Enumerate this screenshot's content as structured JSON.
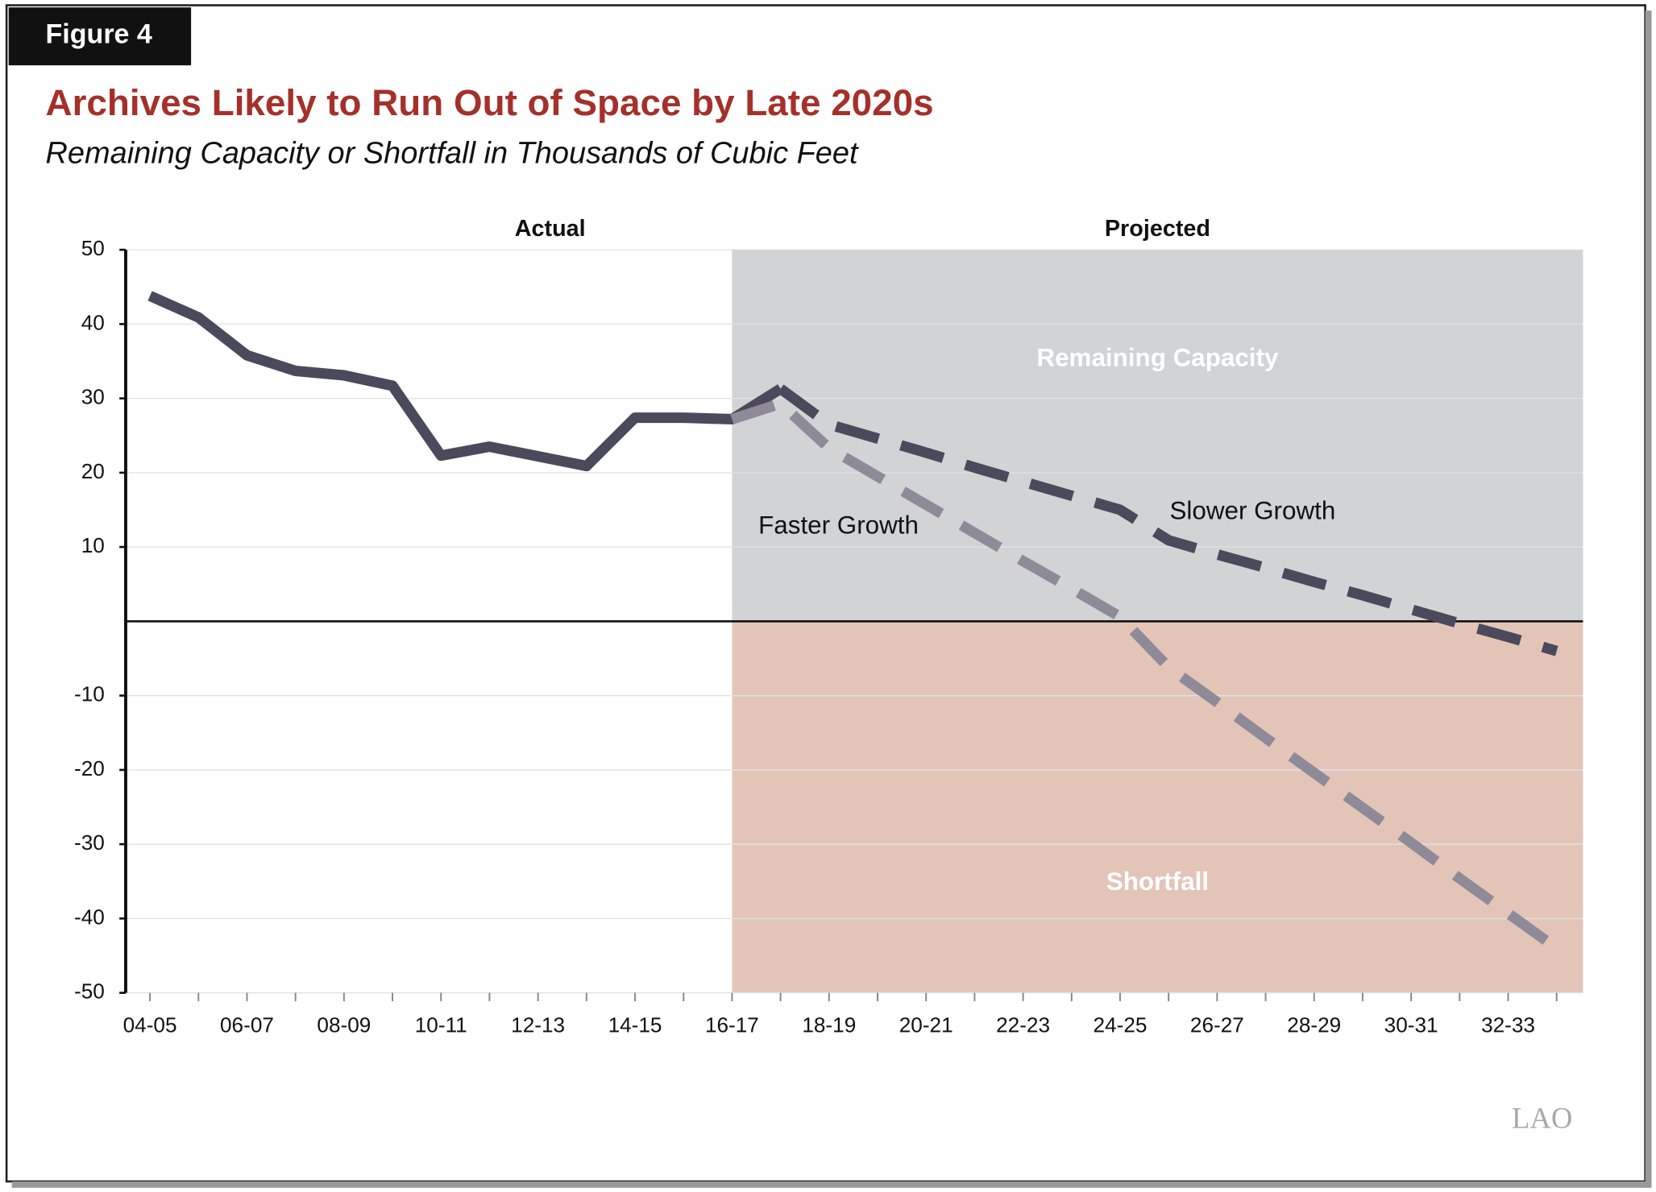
{
  "chart_data": {
    "type": "line",
    "figure_label": "Figure 4",
    "title": "Archives Likely to Run Out of Space by Late 2020s",
    "subtitle": "Remaining Capacity or Shortfall in Thousands of Cubic Feet",
    "region_labels": [
      "Actual",
      "Projected"
    ],
    "area_labels": [
      "Remaining Capacity",
      "Shortfall"
    ],
    "projected_from": "16-17",
    "categories": [
      "04-05",
      null,
      "06-07",
      null,
      "08-09",
      null,
      "10-11",
      null,
      "12-13",
      null,
      "14-15",
      null,
      "16-17",
      null,
      "18-19",
      null,
      "20-21",
      null,
      "22-23",
      null,
      "24-25",
      null,
      "26-27",
      null,
      "28-29",
      null,
      "30-31",
      null,
      "32-33",
      null
    ],
    "series": [
      {
        "name": "Actual",
        "color": "#4a4a5c",
        "dashed": false,
        "values": [
          43.8,
          40.9,
          35.8,
          33.7,
          33.1,
          31.7,
          22.3,
          23.5,
          22.2,
          20.9,
          27.4,
          27.4,
          27.2,
          31.3,
          null,
          null,
          null,
          null,
          null,
          null,
          null,
          null,
          null,
          null,
          null,
          null,
          null,
          null,
          null,
          null
        ]
      },
      {
        "name": "Faster Growth",
        "color": "#8e8a98",
        "dashed": true,
        "values": [
          null,
          null,
          null,
          null,
          null,
          null,
          null,
          null,
          null,
          null,
          null,
          null,
          27.2,
          29.3,
          23.3,
          19.5,
          15.7,
          11.9,
          8.1,
          4.4,
          0.6,
          -6.2,
          -10.9,
          -15.7,
          -20.4,
          -25.1,
          -29.8,
          -34.6,
          -39.3,
          -44
        ]
      },
      {
        "name": "Slower Growth",
        "color": "#4a4a5c",
        "dashed": true,
        "values": [
          null,
          null,
          null,
          null,
          null,
          null,
          null,
          null,
          null,
          null,
          null,
          null,
          null,
          31.3,
          26.5,
          24.6,
          22.7,
          20.7,
          18.8,
          16.9,
          15,
          10.9,
          9,
          7.2,
          5.3,
          3.5,
          1.6,
          -0.3,
          -2.1,
          -4
        ]
      }
    ],
    "ylim": [
      -50,
      50
    ],
    "yticks": [
      50,
      40,
      30,
      20,
      10,
      -10,
      -20,
      -30,
      -40,
      -50
    ],
    "grid": true,
    "logo": "LAO"
  }
}
